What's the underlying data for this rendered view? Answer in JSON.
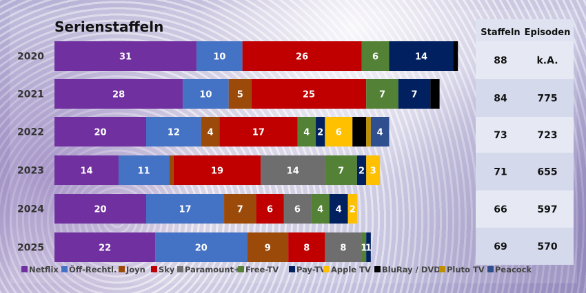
{
  "chart_data": {
    "type": "bar",
    "orientation": "horizontal",
    "stacked": true,
    "title": "Serienstaffeln",
    "categories": [
      "2020",
      "2021",
      "2022",
      "2023",
      "2024",
      "2025"
    ],
    "series": [
      {
        "name": "Netflix",
        "color": "#7030a0",
        "values": [
          31,
          28,
          20,
          14,
          20,
          22
        ]
      },
      {
        "name": "Öff-Rechtl.",
        "color": "#4472c4",
        "values": [
          10,
          10,
          12,
          11,
          17,
          20
        ]
      },
      {
        "name": "Joyn",
        "color": "#9c4a0a",
        "values": [
          0,
          5,
          4,
          1,
          7,
          9
        ]
      },
      {
        "name": "Sky",
        "color": "#c00000",
        "values": [
          26,
          25,
          17,
          19,
          6,
          8
        ]
      },
      {
        "name": "Paramount+",
        "color": "#6e6e6e",
        "values": [
          0,
          0,
          0,
          14,
          6,
          8
        ]
      },
      {
        "name": "Free-TV",
        "color": "#538135",
        "values": [
          6,
          7,
          4,
          7,
          4,
          1
        ]
      },
      {
        "name": "Pay-TV",
        "color": "#002060",
        "values": [
          14,
          7,
          2,
          2,
          4,
          1
        ]
      },
      {
        "name": "Apple TV",
        "color": "#ffc000",
        "values": [
          0,
          0,
          6,
          3,
          2,
          0
        ]
      },
      {
        "name": "BluRay / DVD",
        "color": "#000000",
        "values": [
          1,
          2,
          3,
          0,
          0,
          0
        ]
      },
      {
        "name": "Pluto TV",
        "color": "#bf8f00",
        "values": [
          0,
          0,
          1,
          0,
          0,
          0
        ]
      },
      {
        "name": "Peacock",
        "color": "#2f4f8f",
        "values": [
          0,
          0,
          4,
          0,
          0,
          0
        ]
      }
    ],
    "hidden_labels": {
      "BluRay / DVD": [
        true,
        true,
        true,
        true,
        true,
        true
      ],
      "Pluto TV": [
        true,
        true,
        true,
        true,
        true,
        true
      ],
      "Joyn": [
        false,
        false,
        false,
        true,
        false,
        false
      ]
    },
    "table": {
      "headers": [
        "Staffeln",
        "Episoden"
      ],
      "rows": [
        [
          "88",
          "k.A."
        ],
        [
          "84",
          "775"
        ],
        [
          "73",
          "723"
        ],
        [
          "71",
          "655"
        ],
        [
          "66",
          "597"
        ],
        [
          "69",
          "570"
        ]
      ]
    },
    "legend_position": "bottom",
    "grid": false
  }
}
